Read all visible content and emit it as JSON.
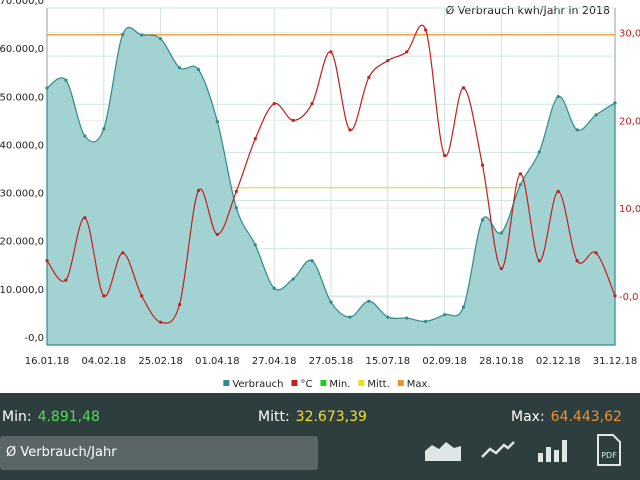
{
  "chart_data": {
    "type": "line",
    "title": "Ø Verbrauch  kwh/Jahr in 2018",
    "categories": [
      "16.01.18",
      null,
      null,
      "04.02.18",
      null,
      null,
      "25.02.18",
      null,
      null,
      "01.04.18",
      null,
      null,
      "27.04.18",
      null,
      null,
      "27.05.18",
      null,
      null,
      "15.07.18",
      null,
      null,
      "02.09.18",
      null,
      null,
      "28.10.18",
      null,
      null,
      "02.12.18",
      null,
      null,
      "31.12.18"
    ],
    "series": [
      {
        "name": "Verbrauch",
        "color": "#2e8b8b",
        "values": [
          53400,
          55000,
          43400,
          44900,
          64500,
          64400,
          63600,
          57600,
          57200,
          46400,
          28500,
          20800,
          11800,
          13700,
          17500,
          8900,
          5800,
          9100,
          5800,
          5600,
          4900,
          6300,
          7900,
          26000,
          23300,
          33300,
          40100,
          51600,
          44700,
          47800,
          50300
        ]
      },
      {
        "name": "°C",
        "color": "#c0201e",
        "axis": "y2",
        "values": [
          4.0,
          1.8,
          8.9,
          0.0,
          4.9,
          0.0,
          -3.0,
          -1.0,
          12.0,
          7.0,
          11.9,
          17.9,
          21.9,
          20.0,
          21.9,
          27.8,
          18.9,
          24.9,
          26.8,
          27.8,
          30.3,
          16.0,
          23.7,
          14.9,
          3.1,
          13.9,
          4.0,
          11.9,
          4.0,
          4.9,
          0.0
        ]
      }
    ],
    "reference_lines": [
      {
        "name": "Min.",
        "color": "#22cc22",
        "value": 4891.48
      },
      {
        "name": "Mitt.",
        "color": "#e8e020",
        "value": 32673.39
      },
      {
        "name": "Max.",
        "color": "#f0922a",
        "value": 64443.62
      }
    ],
    "ylim": [
      0,
      70000
    ],
    "yticks": [
      {
        "value": 0,
        "label": "-0,0"
      },
      {
        "value": 10000,
        "label": "10.000,0"
      },
      {
        "value": 20000,
        "label": "20.000,0"
      },
      {
        "value": 30000,
        "label": "30.000,0"
      },
      {
        "value": 40000,
        "label": "40.000,0"
      },
      {
        "value": 50000,
        "label": "50.000,0"
      },
      {
        "value": 60000,
        "label": "60.000,0"
      },
      {
        "value": 70000,
        "label": "70.000,0"
      }
    ],
    "y2lim": [
      -5.6,
      32.8
    ],
    "y2ticks": [
      {
        "value": 0,
        "label": "-0,0"
      },
      {
        "value": 10,
        "label": "10,0"
      },
      {
        "value": 20,
        "label": "20,0"
      },
      {
        "value": 30,
        "label": "30,0"
      }
    ],
    "grid": true,
    "legend": "bottom"
  },
  "footer": {
    "min_label": "Min:",
    "min_value": {
      "value": 4891.48,
      "label": "4.891,48"
    },
    "mean_label": "Mitt:",
    "mean_value": {
      "value": 32673.39,
      "label": "32.673,39"
    },
    "max_label": "Max:",
    "max_value": {
      "value": 64443.62,
      "label": "64.443,62"
    },
    "selector": "Ø Verbrauch/Jahr"
  }
}
